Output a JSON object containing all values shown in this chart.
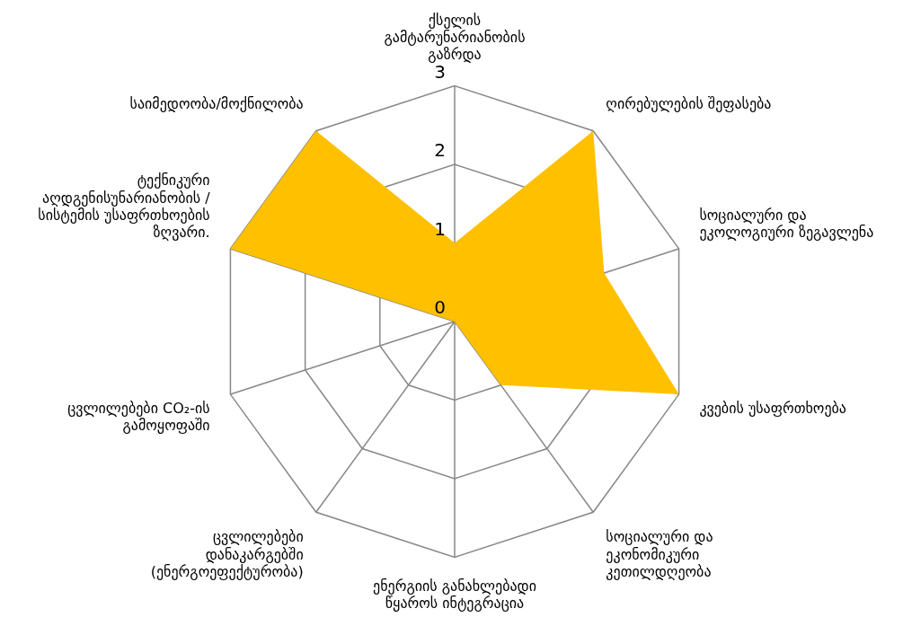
{
  "chart_data": {
    "type": "radar",
    "categories": [
      "ქსელის გამტარუნარიანობის გაზრდა",
      "ღირებულების შეფასება",
      "სოციალური და ეკოლოგიური ზეგავლენა",
      "კვების უსაფრთხოება",
      "სოციალური და ეკონომიკური კეთილდღეობა",
      "ენერგიის განახლებადი წყაროს ინტეგრაცია",
      "ცვლილებები დანაკარგებში (ენერგოეფექტურობა)",
      "ცვლილებები CO₂-ის გამოყოფაში",
      "ტექნიკური აღდგენისუნარიანობის / სისტემის უსაფრთხოების ზღვარი.",
      "საიმედოობა/მოქნილობა"
    ],
    "series": [
      {
        "color": "#ffc000",
        "values": [
          1,
          3,
          2,
          3,
          1,
          0,
          0,
          0,
          3,
          3
        ]
      }
    ],
    "ylim": [
      0,
      3
    ],
    "yticks": [
      0,
      1,
      2,
      3
    ],
    "grid": true,
    "legend": false,
    "marker": "none"
  }
}
